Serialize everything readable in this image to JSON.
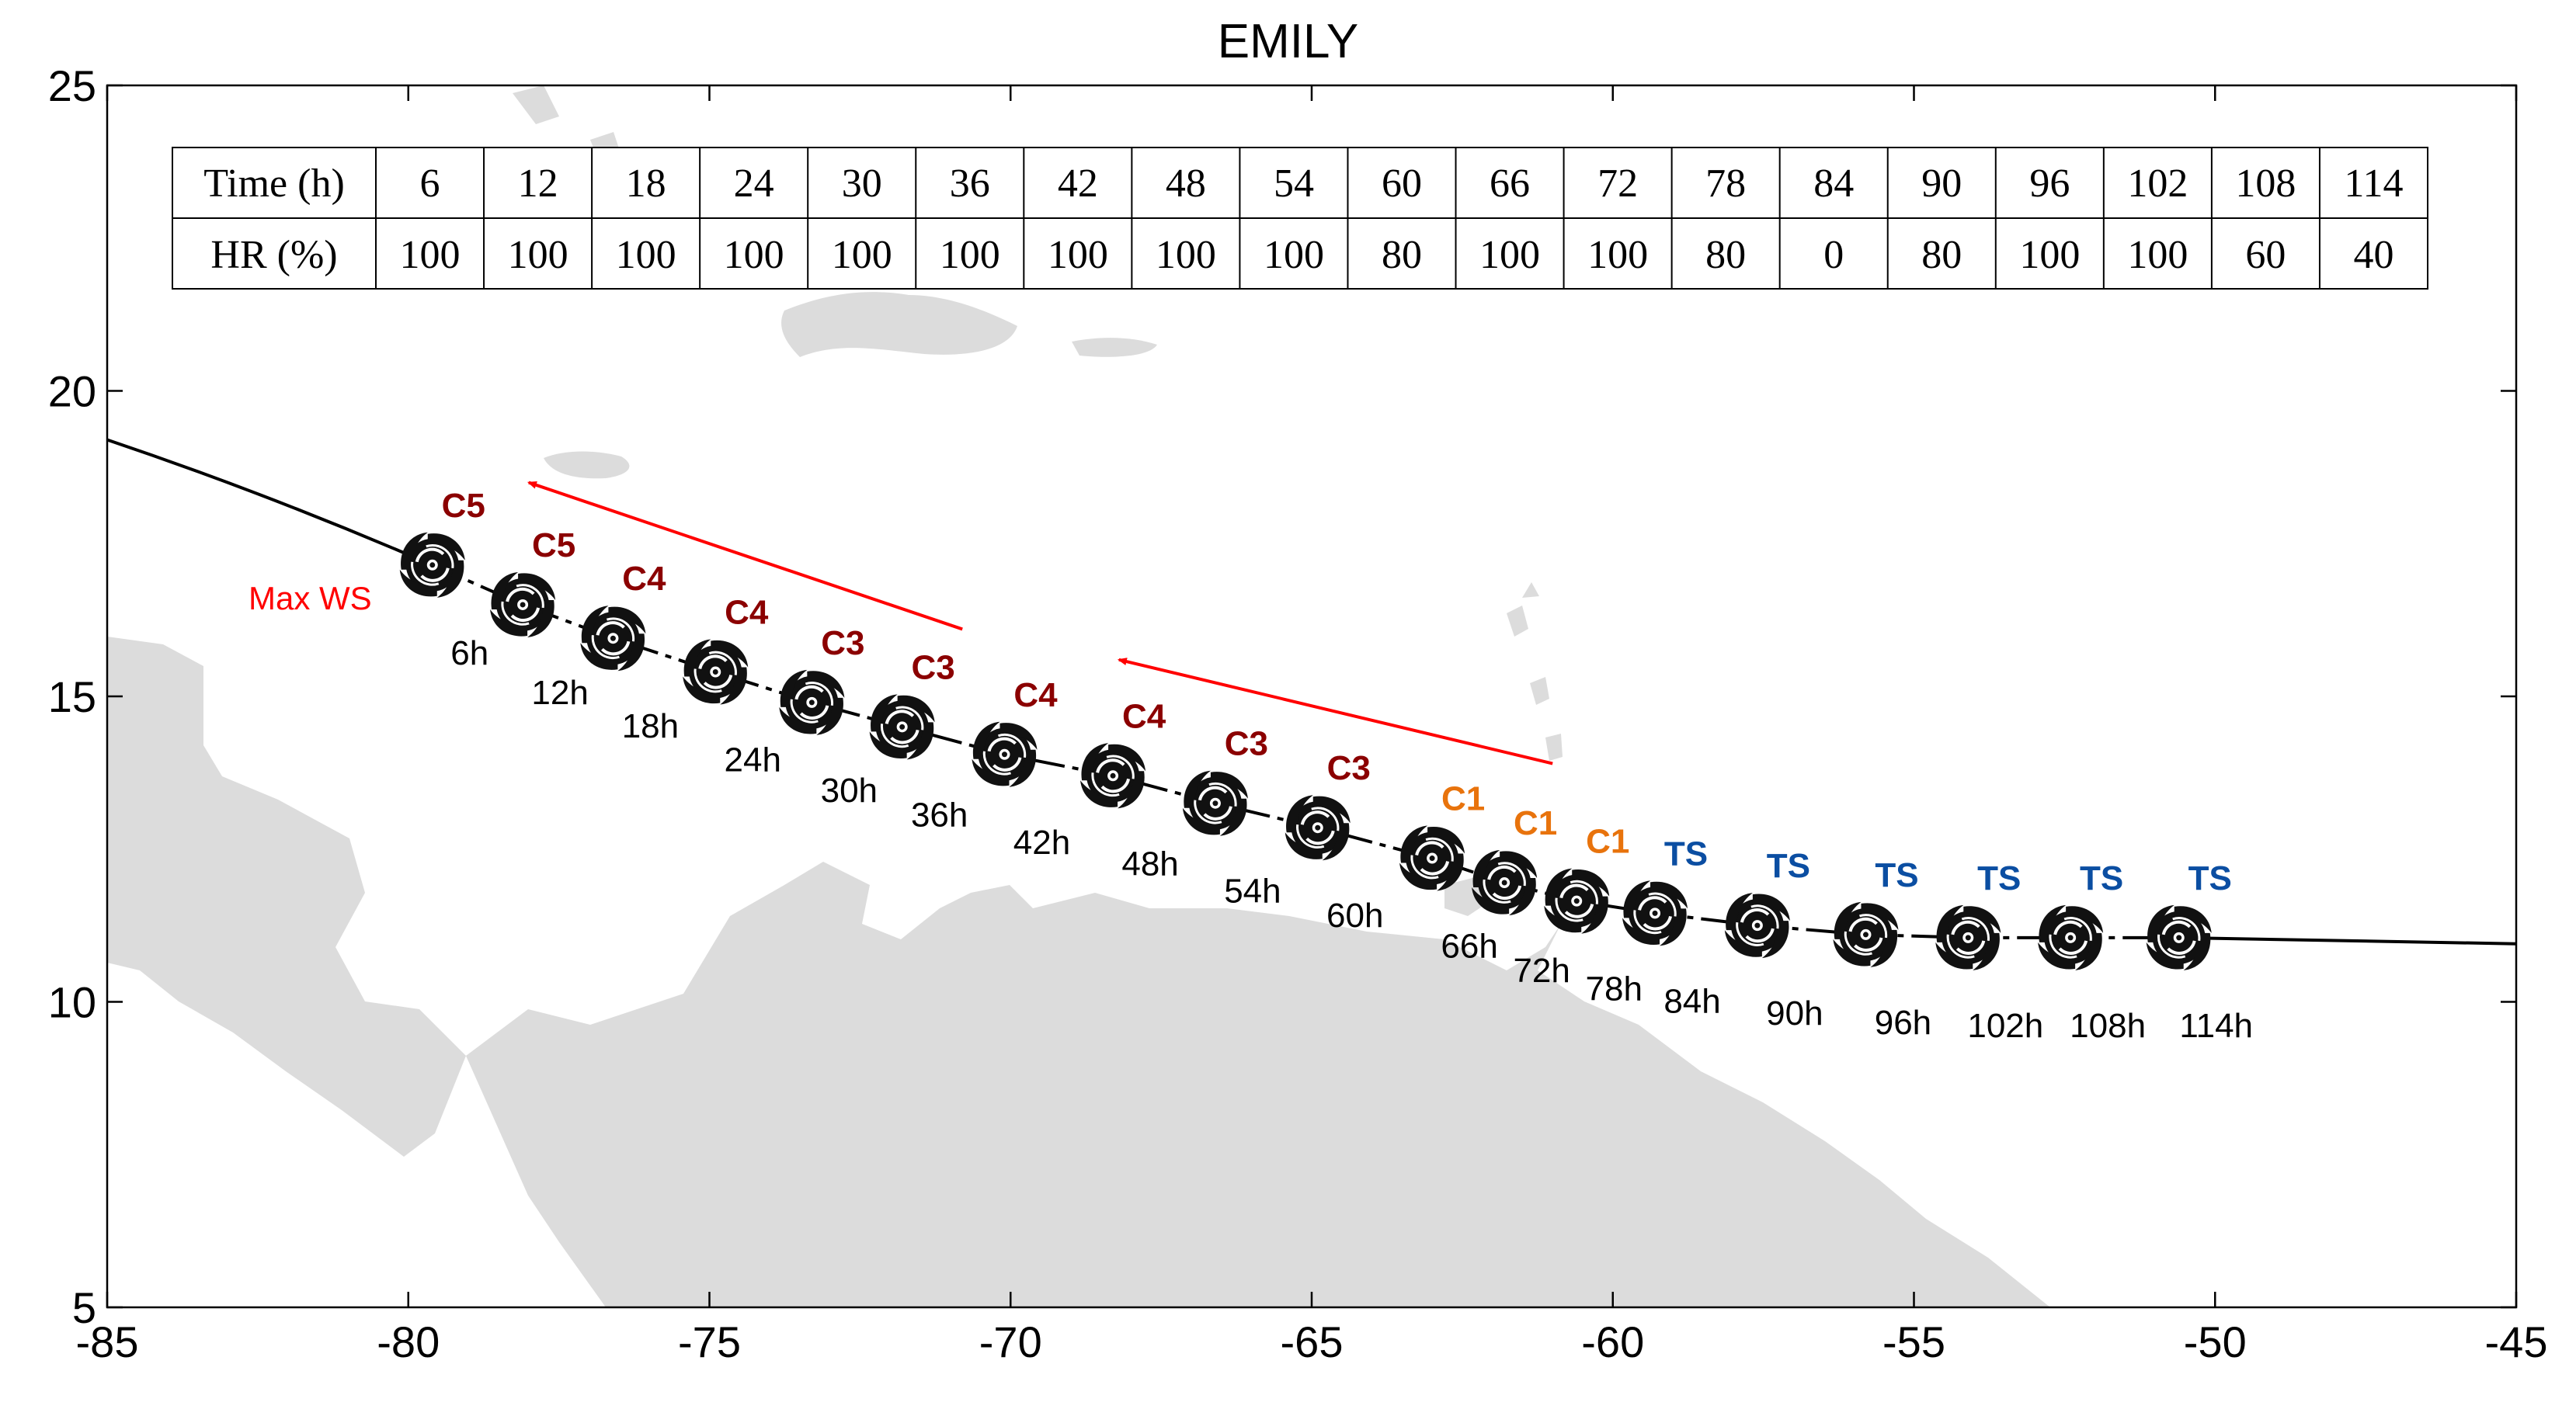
{
  "title": "EMILY",
  "colors": {
    "land": "#dcdcdc",
    "track": "#000000",
    "arrow": "#ff0000",
    "C5": "#8b0000",
    "C4": "#8b0000",
    "C3": "#8b0000",
    "C1": "#e8730c",
    "TS": "#0b4ea2"
  },
  "axes": {
    "xlim": [
      -85,
      -45
    ],
    "ylim": [
      5,
      25
    ],
    "xticks": [
      -85,
      -80,
      -75,
      -70,
      -65,
      -60,
      -55,
      -50,
      -45
    ],
    "yticks": [
      5,
      10,
      15,
      20,
      25
    ],
    "xtick_labels": [
      "-85",
      "-80",
      "-75",
      "-70",
      "-65",
      "-60",
      "-55",
      "-50",
      "-45"
    ],
    "ytick_labels": [
      "5",
      "10",
      "15",
      "20",
      "25"
    ]
  },
  "table": {
    "row1_header": "Time (h)",
    "row2_header": "HR (%)",
    "times": [
      "6",
      "12",
      "18",
      "24",
      "30",
      "36",
      "42",
      "48",
      "54",
      "60",
      "66",
      "72",
      "78",
      "84",
      "90",
      "96",
      "102",
      "108",
      "114"
    ],
    "hr": [
      "100",
      "100",
      "100",
      "100",
      "100",
      "100",
      "100",
      "100",
      "100",
      "80",
      "100",
      "100",
      "80",
      "0",
      "80",
      "100",
      "100",
      "60",
      "40"
    ]
  },
  "storms": [
    {
      "hour": "6h",
      "category": "C5",
      "lon": -79.6,
      "lat": 17.15
    },
    {
      "hour": "12h",
      "category": "C5",
      "lon": -78.1,
      "lat": 16.5
    },
    {
      "hour": "18h",
      "category": "C4",
      "lon": -76.6,
      "lat": 15.95
    },
    {
      "hour": "24h",
      "category": "C4",
      "lon": -74.9,
      "lat": 15.4
    },
    {
      "hour": "30h",
      "category": "C3",
      "lon": -73.3,
      "lat": 14.9
    },
    {
      "hour": "36h",
      "category": "C3",
      "lon": -71.8,
      "lat": 14.5
    },
    {
      "hour": "42h",
      "category": "C4",
      "lon": -70.1,
      "lat": 14.05
    },
    {
      "hour": "48h",
      "category": "C4",
      "lon": -68.3,
      "lat": 13.7
    },
    {
      "hour": "54h",
      "category": "C3",
      "lon": -66.6,
      "lat": 13.25
    },
    {
      "hour": "60h",
      "category": "C3",
      "lon": -64.9,
      "lat": 12.85
    },
    {
      "hour": "66h",
      "category": "C1",
      "lon": -63.0,
      "lat": 12.35
    },
    {
      "hour": "72h",
      "category": "C1",
      "lon": -61.8,
      "lat": 11.95
    },
    {
      "hour": "78h",
      "category": "C1",
      "lon": -60.6,
      "lat": 11.65
    },
    {
      "hour": "84h",
      "category": "TS",
      "lon": -59.3,
      "lat": 11.45
    },
    {
      "hour": "90h",
      "category": "TS",
      "lon": -57.6,
      "lat": 11.25
    },
    {
      "hour": "96h",
      "category": "TS",
      "lon": -55.8,
      "lat": 11.1
    },
    {
      "hour": "102h",
      "category": "TS",
      "lon": -54.1,
      "lat": 11.05
    },
    {
      "hour": "108h",
      "category": "TS",
      "lon": -52.4,
      "lat": 11.05
    },
    {
      "hour": "114h",
      "category": "TS",
      "lon": -50.6,
      "lat": 11.05
    }
  ],
  "track_ends": {
    "west": {
      "lon": -85.0,
      "lat": 19.2
    },
    "east": {
      "lon": -45.0,
      "lat": 10.95
    }
  },
  "annotation": {
    "label": "Max WS",
    "arrow1": {
      "from_lon": -70.8,
      "from_lat": 16.1,
      "to_lon": -78.0,
      "to_lat": 18.5
    },
    "arrow2": {
      "from_lon": -61.0,
      "from_lat": 13.9,
      "to_lon": -68.2,
      "to_lat": 15.6
    }
  }
}
